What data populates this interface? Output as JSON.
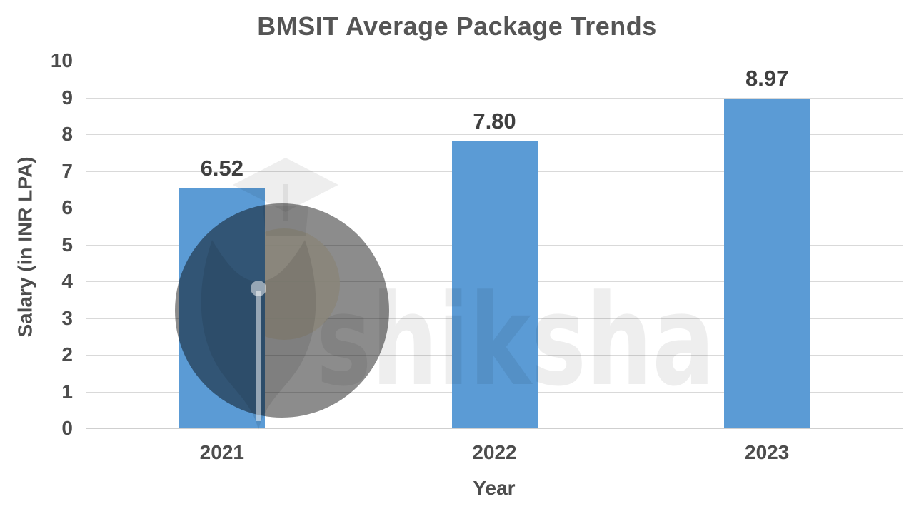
{
  "chart_data": {
    "type": "bar",
    "title": "BMSIT Average Package Trends",
    "xlabel": "Year",
    "ylabel": "Salary (in INR LPA)",
    "categories": [
      "2021",
      "2022",
      "2023"
    ],
    "values": [
      6.52,
      7.8,
      8.97
    ],
    "data_labels": [
      "6.52",
      "7.80",
      "8.97"
    ],
    "ylim": [
      0,
      10
    ],
    "ytick_step": 1,
    "grid": "horizontal",
    "legend": "none",
    "bar_color": "#5b9bd5",
    "gridline_color": "#d9d9d9",
    "label_color": "#3f3f3f"
  },
  "watermark": {
    "text": "shiksha",
    "icon": "pen-nib-graduation-cap"
  }
}
